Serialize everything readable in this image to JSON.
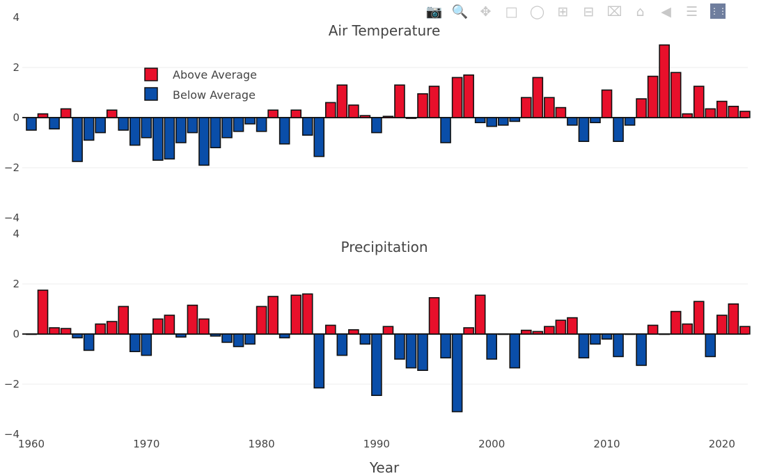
{
  "modebar": {
    "icons": [
      "camera-icon",
      "zoom-icon",
      "pan-icon",
      "box-select-icon",
      "lasso-icon",
      "zoom-in-icon",
      "zoom-out-icon",
      "autoscale-icon",
      "reset-axes-icon",
      "hover-closest-icon",
      "hover-compare-icon",
      "plotly-logo-icon"
    ]
  },
  "colors": {
    "above": "#e8102b",
    "below": "#0a4ea9",
    "outline": "#111111"
  },
  "chart_data": [
    {
      "type": "bar",
      "title": "Air Temperature",
      "legend": {
        "placement": "top-left",
        "entries": [
          "Above Average",
          "Below Average"
        ]
      },
      "x": [
        1960,
        1961,
        1962,
        1963,
        1964,
        1965,
        1966,
        1967,
        1968,
        1969,
        1970,
        1971,
        1972,
        1973,
        1974,
        1975,
        1976,
        1977,
        1978,
        1979,
        1980,
        1981,
        1982,
        1983,
        1984,
        1985,
        1986,
        1987,
        1988,
        1989,
        1990,
        1991,
        1992,
        1993,
        1994,
        1995,
        1996,
        1997,
        1998,
        1999,
        2000,
        2001,
        2002,
        2003,
        2004,
        2005,
        2006,
        2007,
        2008,
        2009,
        2010,
        2011,
        2012,
        2013,
        2014,
        2015,
        2016,
        2017,
        2018,
        2019,
        2020,
        2021,
        2022
      ],
      "values": [
        -0.5,
        0.15,
        -0.45,
        0.35,
        -1.75,
        -0.9,
        -0.6,
        0.3,
        -0.5,
        -1.1,
        -0.8,
        -1.7,
        -1.65,
        -1.0,
        -0.6,
        -1.9,
        -1.2,
        -0.8,
        -0.55,
        -0.25,
        -0.55,
        0.3,
        -1.05,
        0.3,
        -0.7,
        -1.55,
        0.6,
        1.3,
        0.5,
        0.08,
        -0.6,
        0.05,
        1.3,
        -0.03,
        0.95,
        1.25,
        -1.0,
        1.6,
        1.7,
        -0.2,
        -0.35,
        -0.3,
        -0.15,
        0.8,
        1.6,
        0.8,
        0.4,
        -0.3,
        -0.95,
        -0.2,
        1.1,
        -0.95,
        -0.3,
        0.75,
        1.65,
        2.9,
        1.8,
        0.15,
        1.25,
        0.35,
        0.65,
        0.45,
        0.25
      ],
      "ylim": [
        -4,
        4
      ],
      "yticks": [
        "4",
        "2",
        "0",
        "−2",
        "−4"
      ],
      "grid": true
    },
    {
      "type": "bar",
      "title": "Precipitation",
      "x": [
        1960,
        1961,
        1962,
        1963,
        1964,
        1965,
        1966,
        1967,
        1968,
        1969,
        1970,
        1971,
        1972,
        1973,
        1974,
        1975,
        1976,
        1977,
        1978,
        1979,
        1980,
        1981,
        1982,
        1983,
        1984,
        1985,
        1986,
        1987,
        1988,
        1989,
        1990,
        1991,
        1992,
        1993,
        1994,
        1995,
        1996,
        1997,
        1998,
        1999,
        2000,
        2001,
        2002,
        2003,
        2004,
        2005,
        2006,
        2007,
        2008,
        2009,
        2010,
        2011,
        2012,
        2013,
        2014,
        2015,
        2016,
        2017,
        2018,
        2019,
        2020,
        2021,
        2022
      ],
      "values": [
        0,
        1.75,
        0.25,
        0.22,
        -0.15,
        -0.65,
        0.4,
        0.5,
        1.1,
        -0.7,
        -0.85,
        0.6,
        0.75,
        -0.12,
        1.15,
        0.6,
        -0.08,
        -0.33,
        -0.5,
        -0.4,
        1.1,
        1.5,
        -0.15,
        1.55,
        1.6,
        -2.15,
        0.35,
        -0.85,
        0.17,
        -0.4,
        -2.45,
        0.3,
        -1.0,
        -1.35,
        -1.45,
        1.45,
        -0.95,
        -3.1,
        0.25,
        1.55,
        -1.0,
        0,
        -1.35,
        0.15,
        0.1,
        0.3,
        0.55,
        0.65,
        -0.95,
        -0.4,
        -0.2,
        -0.9,
        0,
        -1.25,
        0.35,
        0,
        0.9,
        0.4,
        1.3,
        -0.9,
        0.75,
        1.2,
        0.3
      ],
      "ylim": [
        -4,
        4
      ],
      "yticks": [
        "4",
        "2",
        "0",
        "−2",
        "−4"
      ],
      "xlabel": "Year",
      "xticks": [
        "1960",
        "1970",
        "1980",
        "1990",
        "2000",
        "2010",
        "2020"
      ],
      "grid": true
    }
  ]
}
